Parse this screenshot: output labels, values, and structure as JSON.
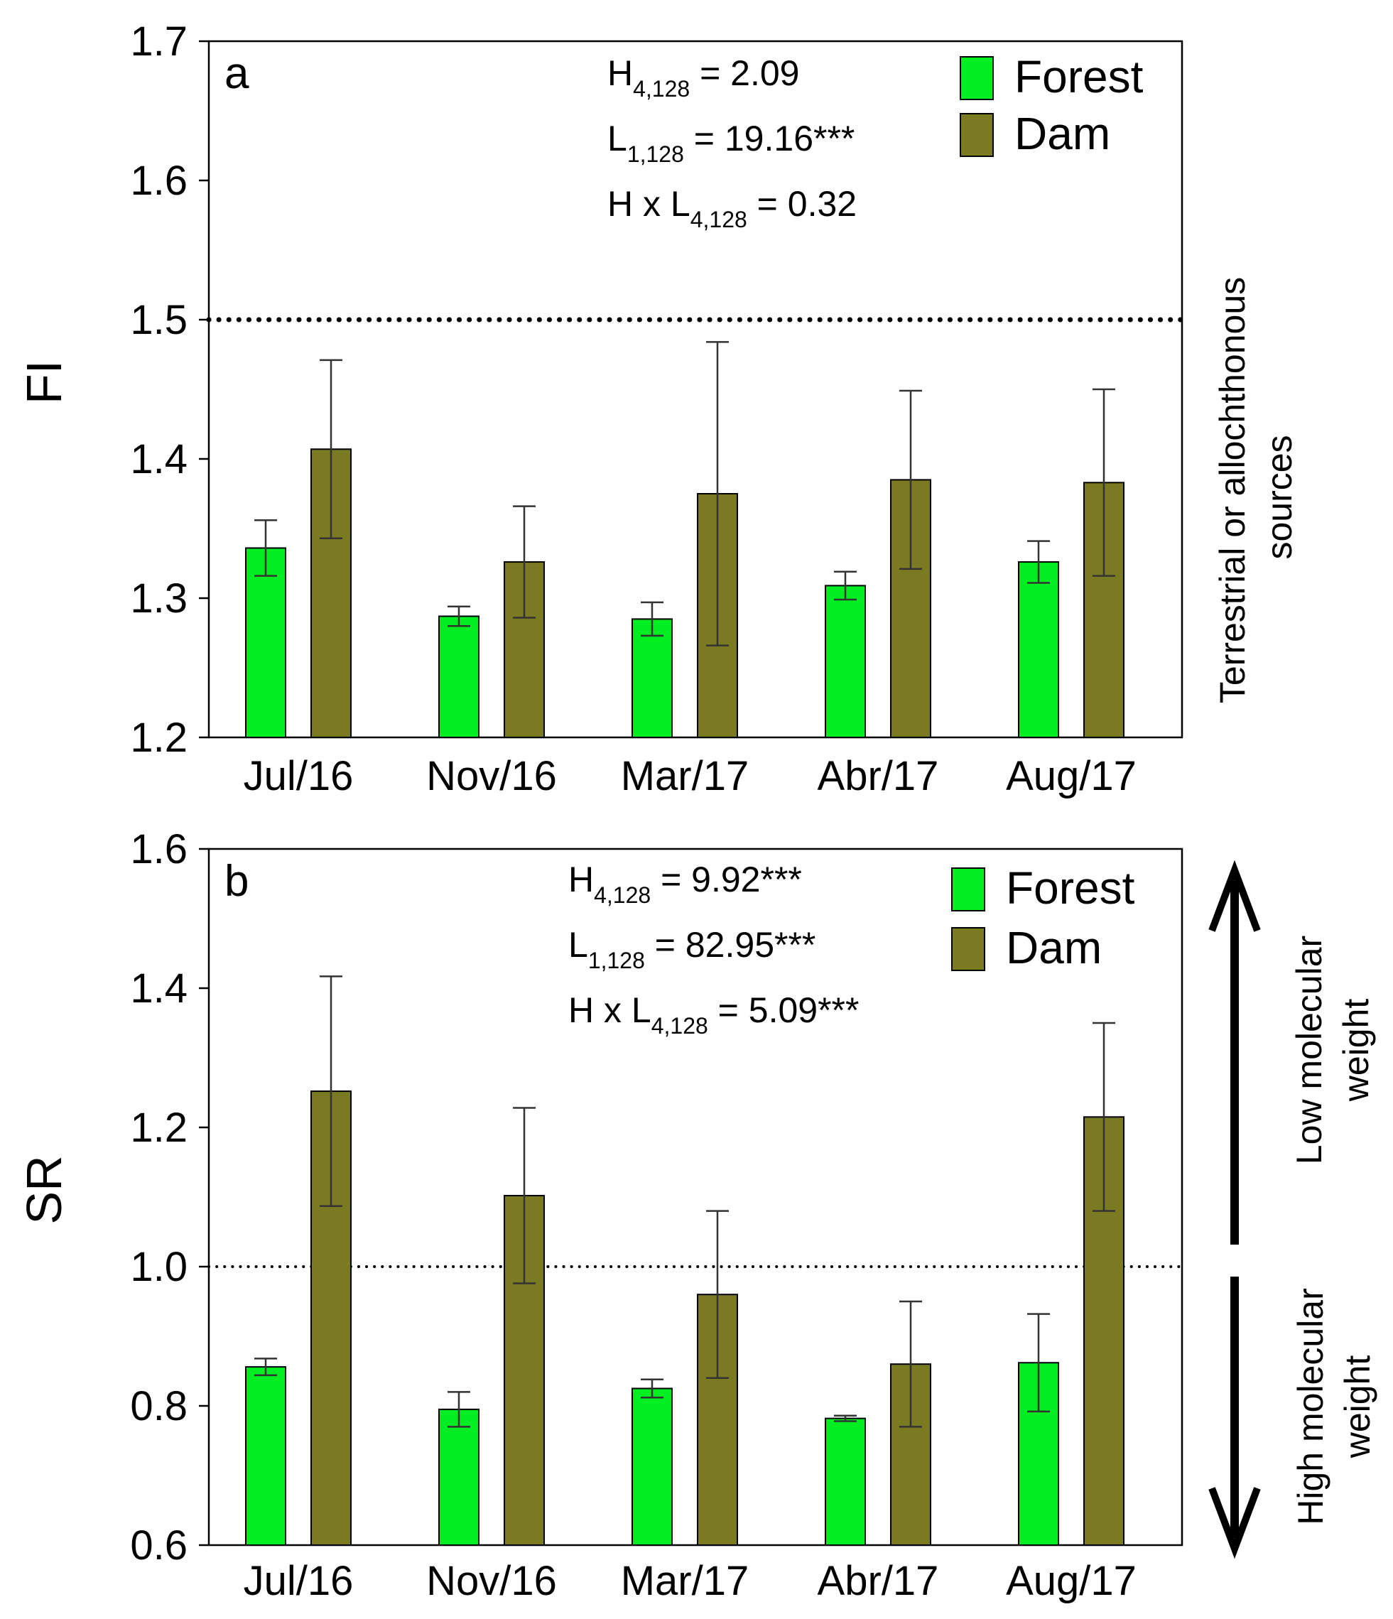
{
  "chart_data": [
    {
      "type": "bar",
      "panel_label": "a",
      "ylabel": "FI",
      "xlabel": "",
      "ylim": [
        1.2,
        1.7
      ],
      "yticks": [
        "1.2",
        "1.3",
        "1.4",
        "1.5",
        "1.6",
        "1.7"
      ],
      "ytick_values": [
        1.2,
        1.3,
        1.4,
        1.5,
        1.6,
        1.7
      ],
      "categories": [
        "Jul/16",
        "Nov/16",
        "Mar/17",
        "Abr/17",
        "Aug/17"
      ],
      "series": [
        {
          "name": "Forest",
          "color": "#00ee22",
          "values": [
            1.336,
            1.287,
            1.285,
            1.309,
            1.326
          ],
          "errors": [
            0.02,
            0.007,
            0.012,
            0.01,
            0.015
          ]
        },
        {
          "name": "Dam",
          "color": "#7a7a22",
          "values": [
            1.407,
            1.326,
            1.375,
            1.385,
            1.383
          ],
          "errors": [
            0.064,
            0.04,
            0.109,
            0.064,
            0.067
          ]
        }
      ],
      "reference_line": 1.5,
      "stats": [
        {
          "base": "H",
          "sub": "4,128",
          "rest": " = 2.09"
        },
        {
          "base": "L",
          "sub": "1,128",
          "rest": " = 19.16***"
        },
        {
          "base": "H x L",
          "sub": "4,128",
          "rest": " = 0.32"
        }
      ],
      "legend": [
        "Forest",
        "Dam"
      ],
      "side_annotation": [
        "Terrestrial or allochthonous",
        "sources"
      ]
    },
    {
      "type": "bar",
      "panel_label": "b",
      "ylabel": "SR",
      "xlabel": "",
      "ylim": [
        0.6,
        1.6
      ],
      "yticks": [
        "0.6",
        "0.8",
        "1.0",
        "1.2",
        "1.4",
        "1.6"
      ],
      "ytick_values": [
        0.6,
        0.8,
        1.0,
        1.2,
        1.4,
        1.6
      ],
      "categories": [
        "Jul/16",
        "Nov/16",
        "Mar/17",
        "Abr/17",
        "Aug/17"
      ],
      "series": [
        {
          "name": "Forest",
          "color": "#00ee22",
          "values": [
            0.856,
            0.795,
            0.825,
            0.782,
            0.862
          ],
          "errors": [
            0.012,
            0.025,
            0.013,
            0.004,
            0.07
          ]
        },
        {
          "name": "Dam",
          "color": "#7a7a22",
          "values": [
            1.252,
            1.102,
            0.96,
            0.86,
            1.215
          ],
          "errors": [
            0.165,
            0.126,
            0.12,
            0.09,
            0.135
          ]
        }
      ],
      "reference_line": 1.0,
      "stats": [
        {
          "base": "H",
          "sub": "4,128",
          "rest": " = 9.92***"
        },
        {
          "base": "L",
          "sub": "1,128",
          "rest": " = 82.95***"
        },
        {
          "base": "H x L",
          "sub": "4,128",
          "rest": " = 5.09***"
        }
      ],
      "legend": [
        "Forest",
        "Dam"
      ],
      "side_annotation_top": [
        "Low molecular",
        "weight"
      ],
      "side_annotation_bottom": [
        "High molecular",
        "weight"
      ]
    }
  ]
}
